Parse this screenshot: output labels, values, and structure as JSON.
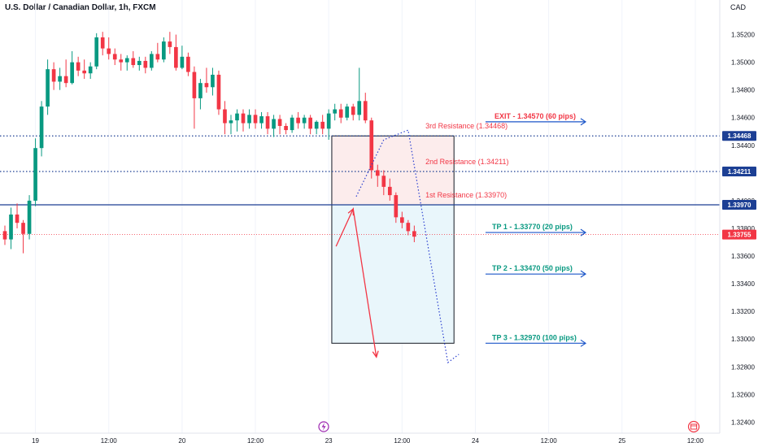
{
  "title": "U.S. Dollar / Canadian Dollar, 1h, FXCM",
  "currency": "CAD",
  "colors": {
    "up": "#089981",
    "down": "#f23645",
    "resistance": "#1c3f94",
    "price_line": "#f23645",
    "annotation_arrow": "#1c56c9",
    "resistance_text": "#f23645",
    "tp_text": "#089981",
    "exit_text": "#f23645",
    "dotted_path": "#2a3fcf",
    "sell_zone": "#fcecec",
    "target_zone": "#e9f6fb",
    "box_border": "#131722"
  },
  "chart_data": {
    "type": "candlestick",
    "y_axis": {
      "ticks": [
        "1.35200",
        "1.35000",
        "1.34800",
        "1.34600",
        "1.34400",
        "1.34000",
        "1.33800",
        "1.33600",
        "1.33400",
        "1.33200",
        "1.33000",
        "1.32800",
        "1.32600",
        "1.32400"
      ],
      "tick_values": [
        1.352,
        1.35,
        1.348,
        1.346,
        1.344,
        1.34,
        1.338,
        1.336,
        1.334,
        1.332,
        1.33,
        1.328,
        1.326,
        1.324
      ],
      "ylim": [
        1.3232,
        1.3545
      ]
    },
    "x_axis": {
      "labels": [
        "19",
        "12:00",
        "20",
        "12:00",
        "23",
        "12:00",
        "24",
        "12:00",
        "25",
        "12:00"
      ],
      "label_hours": [
        0,
        12,
        24,
        36,
        48,
        60,
        72,
        84,
        96,
        108
      ],
      "xlim_hours": [
        -5.8,
        112
      ]
    },
    "price_labels": [
      {
        "text": "1.34468",
        "value": 1.34468,
        "kind": "resistance"
      },
      {
        "text": "1.34211",
        "value": 1.34211,
        "kind": "resistance"
      },
      {
        "text": "1.33970",
        "value": 1.3397,
        "kind": "resistance"
      },
      {
        "text": "1.33755",
        "value": 1.33755,
        "kind": "price"
      }
    ],
    "levels": [
      {
        "value": 1.34468,
        "style": "dotted"
      },
      {
        "value": 1.34211,
        "style": "dotted"
      },
      {
        "value": 1.3397,
        "style": "solid"
      },
      {
        "value": 1.33755,
        "style": "price"
      }
    ],
    "candles_ohlc": [
      [
        1.3378,
        1.3382,
        1.3368,
        1.3372
      ],
      [
        1.3372,
        1.3395,
        1.3365,
        1.339
      ],
      [
        1.339,
        1.3398,
        1.338,
        1.3384
      ],
      [
        1.3384,
        1.3386,
        1.3362,
        1.3376
      ],
      [
        1.3376,
        1.3404,
        1.3372,
        1.34
      ],
      [
        1.34,
        1.3445,
        1.3396,
        1.3438
      ],
      [
        1.3438,
        1.3472,
        1.3432,
        1.3468
      ],
      [
        1.3468,
        1.3502,
        1.3462,
        1.3495
      ],
      [
        1.3495,
        1.35,
        1.348,
        1.3486
      ],
      [
        1.3486,
        1.3496,
        1.348,
        1.349
      ],
      [
        1.349,
        1.3502,
        1.3482,
        1.3485
      ],
      [
        1.3485,
        1.3508,
        1.3484,
        1.35
      ],
      [
        1.35,
        1.3504,
        1.349,
        1.3494
      ],
      [
        1.3494,
        1.3502,
        1.3488,
        1.3492
      ],
      [
        1.3492,
        1.35,
        1.3488,
        1.3497
      ],
      [
        1.3497,
        1.3521,
        1.3495,
        1.3518
      ],
      [
        1.3518,
        1.3522,
        1.3505,
        1.351
      ],
      [
        1.351,
        1.3518,
        1.3502,
        1.3506
      ],
      [
        1.3506,
        1.351,
        1.3498,
        1.3502
      ],
      [
        1.3502,
        1.3506,
        1.3494,
        1.35
      ],
      [
        1.35,
        1.3505,
        1.3494,
        1.3503
      ],
      [
        1.3503,
        1.3508,
        1.3496,
        1.3498
      ],
      [
        1.3498,
        1.3504,
        1.3494,
        1.3501
      ],
      [
        1.3501,
        1.3504,
        1.3492,
        1.3496
      ],
      [
        1.3496,
        1.3508,
        1.3494,
        1.3506
      ],
      [
        1.3506,
        1.3514,
        1.35,
        1.3502
      ],
      [
        1.3502,
        1.3518,
        1.35,
        1.3515
      ],
      [
        1.3515,
        1.3522,
        1.3506,
        1.3511
      ],
      [
        1.3511,
        1.352,
        1.3494,
        1.3496
      ],
      [
        1.3496,
        1.3512,
        1.3495,
        1.3504
      ],
      [
        1.3504,
        1.3507,
        1.349,
        1.3493
      ],
      [
        1.3493,
        1.3497,
        1.3452,
        1.3474
      ],
      [
        1.3474,
        1.3488,
        1.3466,
        1.3485
      ],
      [
        1.3485,
        1.3496,
        1.3478,
        1.3482
      ],
      [
        1.3482,
        1.3496,
        1.3476,
        1.3491
      ],
      [
        1.3491,
        1.3494,
        1.3462,
        1.3466
      ],
      [
        1.3466,
        1.3472,
        1.3448,
        1.3456
      ],
      [
        1.3456,
        1.3462,
        1.3448,
        1.3458
      ],
      [
        1.3458,
        1.3466,
        1.345,
        1.3463
      ],
      [
        1.3463,
        1.3466,
        1.345,
        1.3456
      ],
      [
        1.3456,
        1.3466,
        1.3452,
        1.3462
      ],
      [
        1.3462,
        1.3466,
        1.3452,
        1.3456
      ],
      [
        1.3456,
        1.3464,
        1.3452,
        1.3461
      ],
      [
        1.3461,
        1.3464,
        1.3448,
        1.3452
      ],
      [
        1.3452,
        1.3462,
        1.3446,
        1.3459
      ],
      [
        1.3459,
        1.3462,
        1.3448,
        1.3454
      ],
      [
        1.3454,
        1.3456,
        1.3448,
        1.3451
      ],
      [
        1.3451,
        1.3462,
        1.3449,
        1.346
      ],
      [
        1.346,
        1.3464,
        1.3452,
        1.3456
      ],
      [
        1.3456,
        1.3462,
        1.3452,
        1.346
      ],
      [
        1.346,
        1.3462,
        1.3448,
        1.3452
      ],
      [
        1.3452,
        1.3458,
        1.3448,
        1.3457
      ],
      [
        1.3457,
        1.3462,
        1.3448,
        1.3452
      ],
      [
        1.3452,
        1.3466,
        1.3444,
        1.3463
      ],
      [
        1.3463,
        1.347,
        1.3458,
        1.3466
      ],
      [
        1.3466,
        1.347,
        1.3456,
        1.346
      ],
      [
        1.346,
        1.347,
        1.3458,
        1.3468
      ],
      [
        1.3468,
        1.347,
        1.3458,
        1.3462
      ],
      [
        1.3462,
        1.3496,
        1.3458,
        1.3472
      ],
      [
        1.3472,
        1.3478,
        1.3456,
        1.3458
      ],
      [
        1.3458,
        1.346,
        1.3416,
        1.3422
      ],
      [
        1.3422,
        1.3426,
        1.341,
        1.3418
      ],
      [
        1.3418,
        1.3422,
        1.3404,
        1.341
      ],
      [
        1.341,
        1.3416,
        1.34,
        1.3404
      ],
      [
        1.3404,
        1.3406,
        1.3384,
        1.3388
      ],
      [
        1.3388,
        1.3392,
        1.338,
        1.3384
      ],
      [
        1.3384,
        1.3386,
        1.3375,
        1.3378
      ],
      [
        1.3378,
        1.3382,
        1.337,
        1.3374
      ]
    ]
  },
  "annotations": {
    "resistance_labels": [
      {
        "text": "3rd Resistance (1.34468)",
        "value": 1.34468
      },
      {
        "text": "2nd Resistance (1.34211)",
        "value": 1.34211
      },
      {
        "text": "1st Resistance (1.33970)",
        "value": 1.3397
      }
    ],
    "targets": [
      {
        "text": "EXIT - 1.34570 (60 pips)",
        "value": 1.3457,
        "kind": "exit"
      },
      {
        "text": "TP 1 - 1.33770 (20 pips)",
        "value": 1.3377,
        "kind": "tp"
      },
      {
        "text": "TP 2 - 1.33470 (50 pips)",
        "value": 1.3347,
        "kind": "tp"
      },
      {
        "text": "TP 3 - 1.32970 (100 pips)",
        "value": 1.3297,
        "kind": "tp"
      }
    ],
    "risk_box": {
      "entry": 1.3397,
      "stop": 1.34468,
      "target": 1.3297,
      "start_hours": 48.5,
      "end_hours": 68.5
    },
    "red_path": [
      [
        49.2,
        1.3367
      ],
      [
        52.0,
        1.3394
      ],
      [
        55.8,
        1.3287
      ]
    ],
    "dotted_path": [
      [
        52.5,
        1.3403
      ],
      [
        57.0,
        1.3444
      ],
      [
        61.0,
        1.3451
      ],
      [
        67.5,
        1.3283
      ],
      [
        69.3,
        1.3289
      ]
    ]
  }
}
